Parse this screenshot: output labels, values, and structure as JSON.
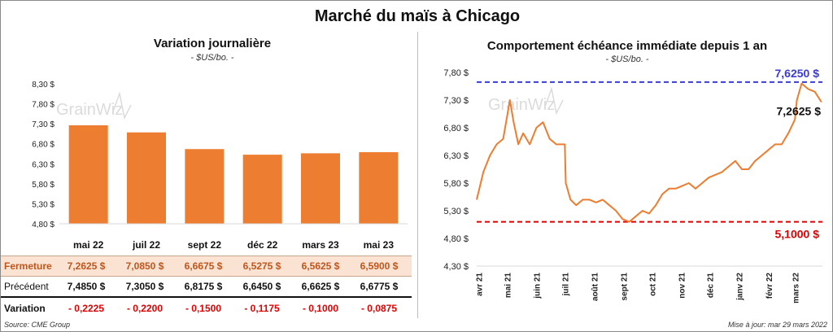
{
  "title": "Marché du maïs à Chicago",
  "left_panel": {
    "title": "Variation journalière",
    "unit": "- $US/bo. -"
  },
  "right_panel": {
    "title": "Comportement échéance immédiate depuis 1 an",
    "unit": "- $US/bo. -"
  },
  "watermark": "GrainWiz",
  "table": {
    "contracts": [
      "mai 22",
      "juil 22",
      "sept 22",
      "déc 22",
      "mars 23",
      "mai 23"
    ],
    "rows": [
      {
        "label": "Fermeture",
        "values": [
          "7,2625 $",
          "7,0850 $",
          "6,6675 $",
          "6,5275 $",
          "6,5625 $",
          "6,5900 $"
        ]
      },
      {
        "label": "Précédent",
        "values": [
          "7,4850 $",
          "7,3050 $",
          "6,8175 $",
          "6,6450 $",
          "6,6625 $",
          "6,6775 $"
        ]
      },
      {
        "label": "Variation",
        "values": [
          "- 0,2225",
          "- 0,2200",
          "- 0,1500",
          "- 0,1175",
          "- 0,1000",
          "- 0,0875"
        ]
      }
    ]
  },
  "footer": {
    "source": "Source: CME Group",
    "updated": "Mise à jour: mar 29 mars 2022"
  },
  "chart_data": [
    {
      "type": "bar",
      "categories": [
        "mai 22",
        "juil 22",
        "sept 22",
        "déc 22",
        "mars 23",
        "mai 23"
      ],
      "values": [
        7.2625,
        7.085,
        6.6675,
        6.5275,
        6.5625,
        6.59
      ],
      "ylim": [
        4.8,
        8.3
      ],
      "yticks": [
        "4,80 $",
        "5,30 $",
        "5,80 $",
        "6,30 $",
        "6,80 $",
        "7,30 $",
        "7,80 $",
        "8,30 $"
      ],
      "color": "#ed7d31",
      "grid": false
    },
    {
      "type": "line",
      "ylim": [
        4.3,
        7.8
      ],
      "yticks": [
        "4,30 $",
        "4,80 $",
        "5,30 $",
        "5,80 $",
        "6,30 $",
        "6,80 $",
        "7,30 $",
        "7,80 $"
      ],
      "xticks": [
        "avr 21",
        "mai 21",
        "juin 21",
        "juil 21",
        "août 21",
        "sept 21",
        "oct 21",
        "nov 21",
        "déc 21",
        "janv 22",
        "févr 22",
        "mars 22"
      ],
      "x": [
        "2021-03-29",
        "2021-04-05",
        "2021-04-12",
        "2021-04-19",
        "2021-04-26",
        "2021-05-03",
        "2021-05-07",
        "2021-05-12",
        "2021-05-17",
        "2021-05-24",
        "2021-05-31",
        "2021-06-07",
        "2021-06-14",
        "2021-06-21",
        "2021-06-30",
        "2021-07-01",
        "2021-07-06",
        "2021-07-12",
        "2021-07-19",
        "2021-07-26",
        "2021-08-02",
        "2021-08-09",
        "2021-08-16",
        "2021-08-23",
        "2021-08-30",
        "2021-09-06",
        "2021-09-13",
        "2021-09-20",
        "2021-09-27",
        "2021-10-04",
        "2021-10-11",
        "2021-10-18",
        "2021-10-25",
        "2021-11-01",
        "2021-11-08",
        "2021-11-15",
        "2021-11-22",
        "2021-11-29",
        "2021-12-06",
        "2021-12-13",
        "2021-12-20",
        "2021-12-27",
        "2022-01-03",
        "2022-01-10",
        "2022-01-17",
        "2022-01-24",
        "2022-01-31",
        "2022-02-07",
        "2022-02-14",
        "2022-02-21",
        "2022-02-28",
        "2022-03-02",
        "2022-03-07",
        "2022-03-14",
        "2022-03-21",
        "2022-03-28"
      ],
      "series": [
        {
          "values": [
            5.5,
            6.0,
            6.3,
            6.5,
            6.6,
            7.3,
            6.9,
            6.5,
            6.7,
            6.5,
            6.8,
            6.9,
            6.6,
            6.5,
            6.5,
            5.8,
            5.5,
            5.4,
            5.5,
            5.5,
            5.45,
            5.5,
            5.4,
            5.3,
            5.15,
            5.1,
            5.2,
            5.3,
            5.25,
            5.4,
            5.6,
            5.7,
            5.7,
            5.75,
            5.8,
            5.7,
            5.8,
            5.9,
            5.95,
            6.0,
            6.1,
            6.2,
            6.05,
            6.05,
            6.2,
            6.3,
            6.4,
            6.5,
            6.5,
            6.7,
            6.95,
            7.3,
            7.6,
            7.5,
            7.45,
            7.2625
          ],
          "color": "#ed7d31"
        }
      ],
      "reference_lines": [
        {
          "value": 7.625,
          "label": "7,6250 $",
          "color": "#3b3bd6"
        },
        {
          "value": 5.1,
          "label": "5,1000 $",
          "color": "#e00000"
        }
      ],
      "last_label": "7,2625 $",
      "grid": false
    }
  ]
}
